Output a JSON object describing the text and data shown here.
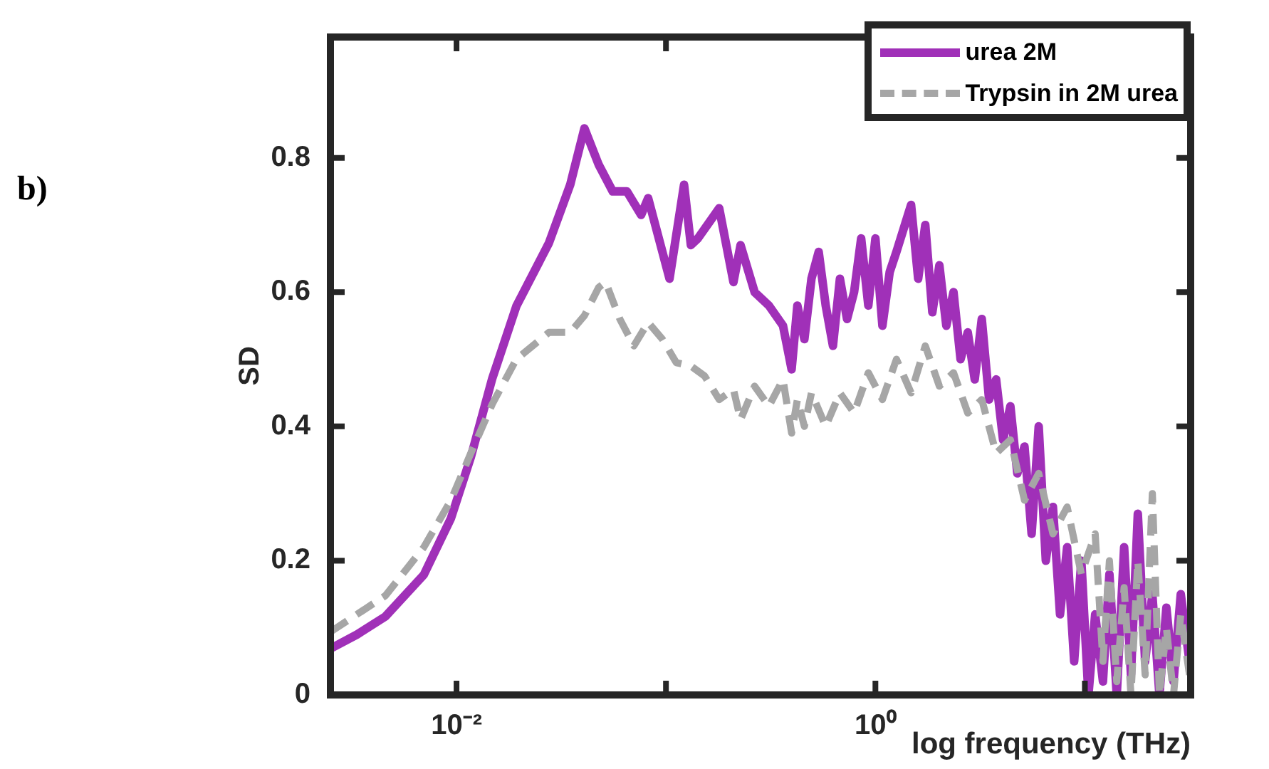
{
  "chart_data": {
    "type": "line",
    "xlabel": "log frequency (THz)",
    "ylabel": "SD",
    "annotations": [
      "b)"
    ],
    "log": "x",
    "xlim": [
      0.0025,
      32
    ],
    "xticks": [
      {
        "value": 0.01,
        "label": "10⁻²"
      },
      {
        "value": 0.1,
        "label": null
      },
      {
        "value": 1,
        "label": "10⁰"
      },
      {
        "value": 10,
        "label": null
      }
    ],
    "ylim": [
      0,
      0.98
    ],
    "yticks": [
      0,
      0.2,
      0.4,
      0.6,
      0.8
    ],
    "legend": "top right",
    "marker": "none",
    "series": [
      {
        "name": "urea 2M",
        "color": "#a030b8",
        "line_style": "solid",
        "x": [
          0.0025,
          0.00335,
          0.00458,
          0.00698,
          0.0094,
          0.0117,
          0.0148,
          0.0193,
          0.0276,
          0.0349,
          0.0408,
          0.0477,
          0.0557,
          0.0651,
          0.0761,
          0.0822,
          0.104,
          0.122,
          0.1315,
          0.142,
          0.1795,
          0.21,
          0.227,
          0.265,
          0.31,
          0.362,
          0.398,
          0.424,
          0.458,
          0.495,
          0.536,
          0.579,
          0.627,
          0.677,
          0.732,
          0.791,
          0.855,
          0.925,
          1.0,
          1.08,
          1.17,
          1.26,
          1.48,
          1.6,
          1.73,
          1.87,
          2.02,
          2.18,
          2.36,
          2.55,
          2.76,
          2.98,
          3.22,
          3.49,
          3.77,
          4.07,
          4.41,
          4.76,
          5.15,
          5.57,
          6.02,
          6.51,
          7.04,
          7.61,
          8.23,
          8.89,
          9.62,
          10.4,
          11.2,
          12.2,
          13.1,
          14.2,
          15.4,
          16.6,
          17.9,
          19.4,
          21.0,
          22.7,
          24.5,
          26.5,
          28.7,
          31.6
        ],
        "values": [
          0.069,
          0.09,
          0.117,
          0.179,
          0.263,
          0.354,
          0.471,
          0.579,
          0.673,
          0.76,
          0.844,
          0.79,
          0.75,
          0.75,
          0.715,
          0.74,
          0.62,
          0.76,
          0.67,
          0.68,
          0.725,
          0.615,
          0.67,
          0.6,
          0.58,
          0.55,
          0.485,
          0.58,
          0.53,
          0.62,
          0.66,
          0.58,
          0.52,
          0.62,
          0.56,
          0.6,
          0.68,
          0.58,
          0.68,
          0.55,
          0.63,
          0.66,
          0.73,
          0.62,
          0.7,
          0.57,
          0.64,
          0.55,
          0.6,
          0.5,
          0.54,
          0.47,
          0.56,
          0.44,
          0.47,
          0.38,
          0.43,
          0.33,
          0.37,
          0.24,
          0.4,
          0.2,
          0.28,
          0.12,
          0.22,
          0.05,
          0.2,
          0,
          0.12,
          0.02,
          0.18,
          0,
          0.22,
          0.03,
          0.27,
          0.05,
          0.15,
          0,
          0.13,
          0.02,
          0.15,
          0.05
        ]
      },
      {
        "name": "Trypsin in 2M urea",
        "color": "#a6a6a6",
        "line_style": "dashed",
        "x": [
          0.0025,
          0.00458,
          0.00698,
          0.0094,
          0.0117,
          0.0148,
          0.0193,
          0.0276,
          0.0349,
          0.0408,
          0.0477,
          0.0515,
          0.0602,
          0.0703,
          0.0822,
          0.0961,
          0.112,
          0.1315,
          0.153,
          0.1795,
          0.21,
          0.227,
          0.265,
          0.31,
          0.362,
          0.398,
          0.424,
          0.458,
          0.495,
          0.579,
          0.677,
          0.791,
          0.925,
          1.08,
          1.26,
          1.48,
          1.73,
          2.02,
          2.36,
          2.76,
          3.22,
          3.77,
          4.41,
          5.15,
          6.02,
          7.04,
          8.23,
          9.62,
          11.2,
          12.2,
          13.1,
          14.2,
          15.4,
          16.6,
          17.9,
          19.4,
          21.0,
          22.7,
          24.5,
          26.5,
          28.7,
          31.6
        ],
        "values": [
          0.094,
          0.148,
          0.22,
          0.29,
          0.36,
          0.433,
          0.5,
          0.54,
          0.54,
          0.565,
          0.607,
          0.615,
          0.56,
          0.52,
          0.555,
          0.53,
          0.495,
          0.49,
          0.475,
          0.44,
          0.455,
          0.41,
          0.46,
          0.43,
          0.47,
          0.39,
          0.44,
          0.4,
          0.45,
          0.4,
          0.45,
          0.42,
          0.48,
          0.44,
          0.5,
          0.45,
          0.52,
          0.46,
          0.48,
          0.42,
          0.44,
          0.36,
          0.38,
          0.29,
          0.33,
          0.24,
          0.28,
          0.18,
          0.24,
          0.05,
          0.2,
          0.02,
          0.16,
          0,
          0.2,
          0.03,
          0.3,
          0,
          0.1,
          0,
          0.12,
          0.03
        ]
      }
    ]
  }
}
